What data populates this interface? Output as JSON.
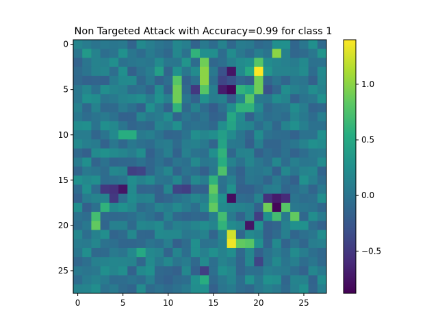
{
  "chart_data": {
    "type": "heatmap",
    "title": "Non Targeted Attack with Accuracy=0.99 for class 1",
    "xlabel": "",
    "ylabel": "",
    "rows": 28,
    "cols": 28,
    "x_ticks": [
      0,
      5,
      10,
      15,
      20,
      25
    ],
    "y_ticks": [
      0,
      5,
      10,
      15,
      20,
      25
    ],
    "colormap": "viridis",
    "vmin": -0.88,
    "vmax": 1.4,
    "colorbar_ticks": [
      1.0,
      0.5,
      0.0,
      -0.5
    ],
    "colorbar_tick_labels": [
      "1.0",
      "0.5",
      "0.0",
      "−0.5"
    ],
    "base_value": 0.05,
    "value_note_cells": [
      {
        "r": 0,
        "c": 0,
        "v": 0.15
      },
      {
        "r": 0,
        "c": 2,
        "v": 0.0
      },
      {
        "r": 0,
        "c": 3,
        "v": 0.05
      },
      {
        "r": 0,
        "c": 7,
        "v": 0.2
      },
      {
        "r": 0,
        "c": 12,
        "v": 0.1
      },
      {
        "r": 0,
        "c": 21,
        "v": -0.05
      },
      {
        "r": 1,
        "c": 1,
        "v": 0.35
      },
      {
        "r": 1,
        "c": 4,
        "v": 0.0
      },
      {
        "r": 1,
        "c": 13,
        "v": 0.6
      },
      {
        "r": 1,
        "c": 14,
        "v": 0.25
      },
      {
        "r": 1,
        "c": 22,
        "v": 1.0
      },
      {
        "r": 1,
        "c": 27,
        "v": 0.3
      },
      {
        "r": 2,
        "c": 12,
        "v": 0.3
      },
      {
        "r": 2,
        "c": 14,
        "v": 0.9
      },
      {
        "r": 2,
        "c": 17,
        "v": 0.1
      },
      {
        "r": 2,
        "c": 20,
        "v": 0.8
      },
      {
        "r": 2,
        "c": 25,
        "v": 0.2
      },
      {
        "r": 3,
        "c": 9,
        "v": 0.4
      },
      {
        "r": 3,
        "c": 14,
        "v": 1.0
      },
      {
        "r": 3,
        "c": 16,
        "v": -0.3
      },
      {
        "r": 3,
        "c": 17,
        "v": -0.75
      },
      {
        "r": 3,
        "c": 18,
        "v": 0.2
      },
      {
        "r": 3,
        "c": 19,
        "v": 0.5
      },
      {
        "r": 3,
        "c": 20,
        "v": 1.4
      },
      {
        "r": 3,
        "c": 21,
        "v": 0.3
      },
      {
        "r": 4,
        "c": 11,
        "v": 0.8
      },
      {
        "r": 4,
        "c": 14,
        "v": 1.0
      },
      {
        "r": 4,
        "c": 16,
        "v": -0.4
      },
      {
        "r": 4,
        "c": 17,
        "v": -0.3
      },
      {
        "r": 4,
        "c": 20,
        "v": 0.9
      },
      {
        "r": 5,
        "c": 11,
        "v": 0.9
      },
      {
        "r": 5,
        "c": 13,
        "v": -0.5
      },
      {
        "r": 5,
        "c": 14,
        "v": 0.8
      },
      {
        "r": 5,
        "c": 16,
        "v": -0.7
      },
      {
        "r": 5,
        "c": 17,
        "v": -0.85
      },
      {
        "r": 5,
        "c": 18,
        "v": 0.6
      },
      {
        "r": 5,
        "c": 19,
        "v": 0.5
      },
      {
        "r": 5,
        "c": 20,
        "v": 0.9
      },
      {
        "r": 5,
        "c": 21,
        "v": -0.3
      },
      {
        "r": 6,
        "c": 11,
        "v": 0.9
      },
      {
        "r": 6,
        "c": 19,
        "v": 0.8
      },
      {
        "r": 6,
        "c": 17,
        "v": -0.2
      },
      {
        "r": 7,
        "c": 11,
        "v": 0.6
      },
      {
        "r": 7,
        "c": 18,
        "v": 0.6
      },
      {
        "r": 7,
        "c": 19,
        "v": 0.6
      },
      {
        "r": 7,
        "c": 15,
        "v": -0.2
      }
    ]
  }
}
